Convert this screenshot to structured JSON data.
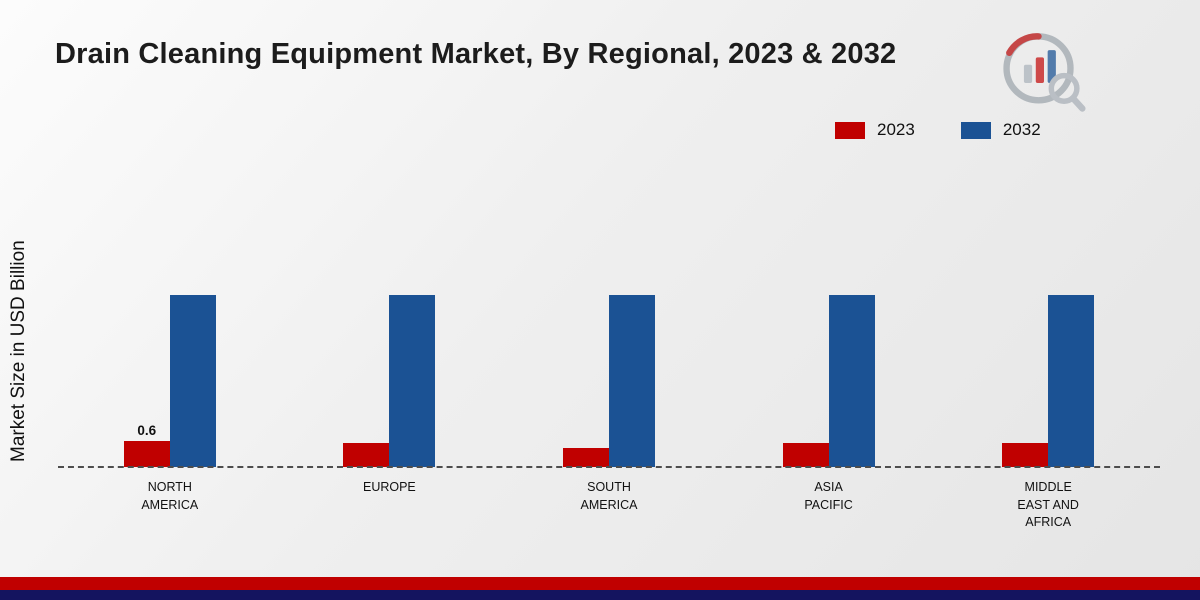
{
  "title": "Drain Cleaning Equipment Market, By Regional, 2023 & 2032",
  "ylabel": "Market Size in USD Billion",
  "colors": {
    "series_2023": "#c00000",
    "series_2032": "#1b5294",
    "footer_red": "#c00000",
    "footer_navy": "#14145f"
  },
  "legend": {
    "items": [
      {
        "label": "2023",
        "color": "#c00000"
      },
      {
        "label": "2032",
        "color": "#1b5294"
      }
    ]
  },
  "chart_data": {
    "type": "bar",
    "title": "Drain Cleaning Equipment Market, By Regional, 2023 & 2032",
    "xlabel": "",
    "ylabel": "Market Size in USD Billion",
    "categories": [
      "NORTH AMERICA",
      "EUROPE",
      "SOUTH AMERICA",
      "ASIA PACIFIC",
      "MIDDLE EAST AND AFRICA"
    ],
    "series": [
      {
        "name": "2023",
        "color": "#c00000",
        "values": [
          0.6,
          0.55,
          0.45,
          0.55,
          0.55
        ]
      },
      {
        "name": "2032",
        "color": "#1b5294",
        "values": [
          4.0,
          4.0,
          4.0,
          4.0,
          4.0
        ]
      }
    ],
    "data_labels": [
      {
        "series": "2023",
        "category": "NORTH AMERICA",
        "text": "0.6"
      }
    ],
    "grid": false,
    "legend_position": "top-right",
    "baseline": "dashed"
  }
}
